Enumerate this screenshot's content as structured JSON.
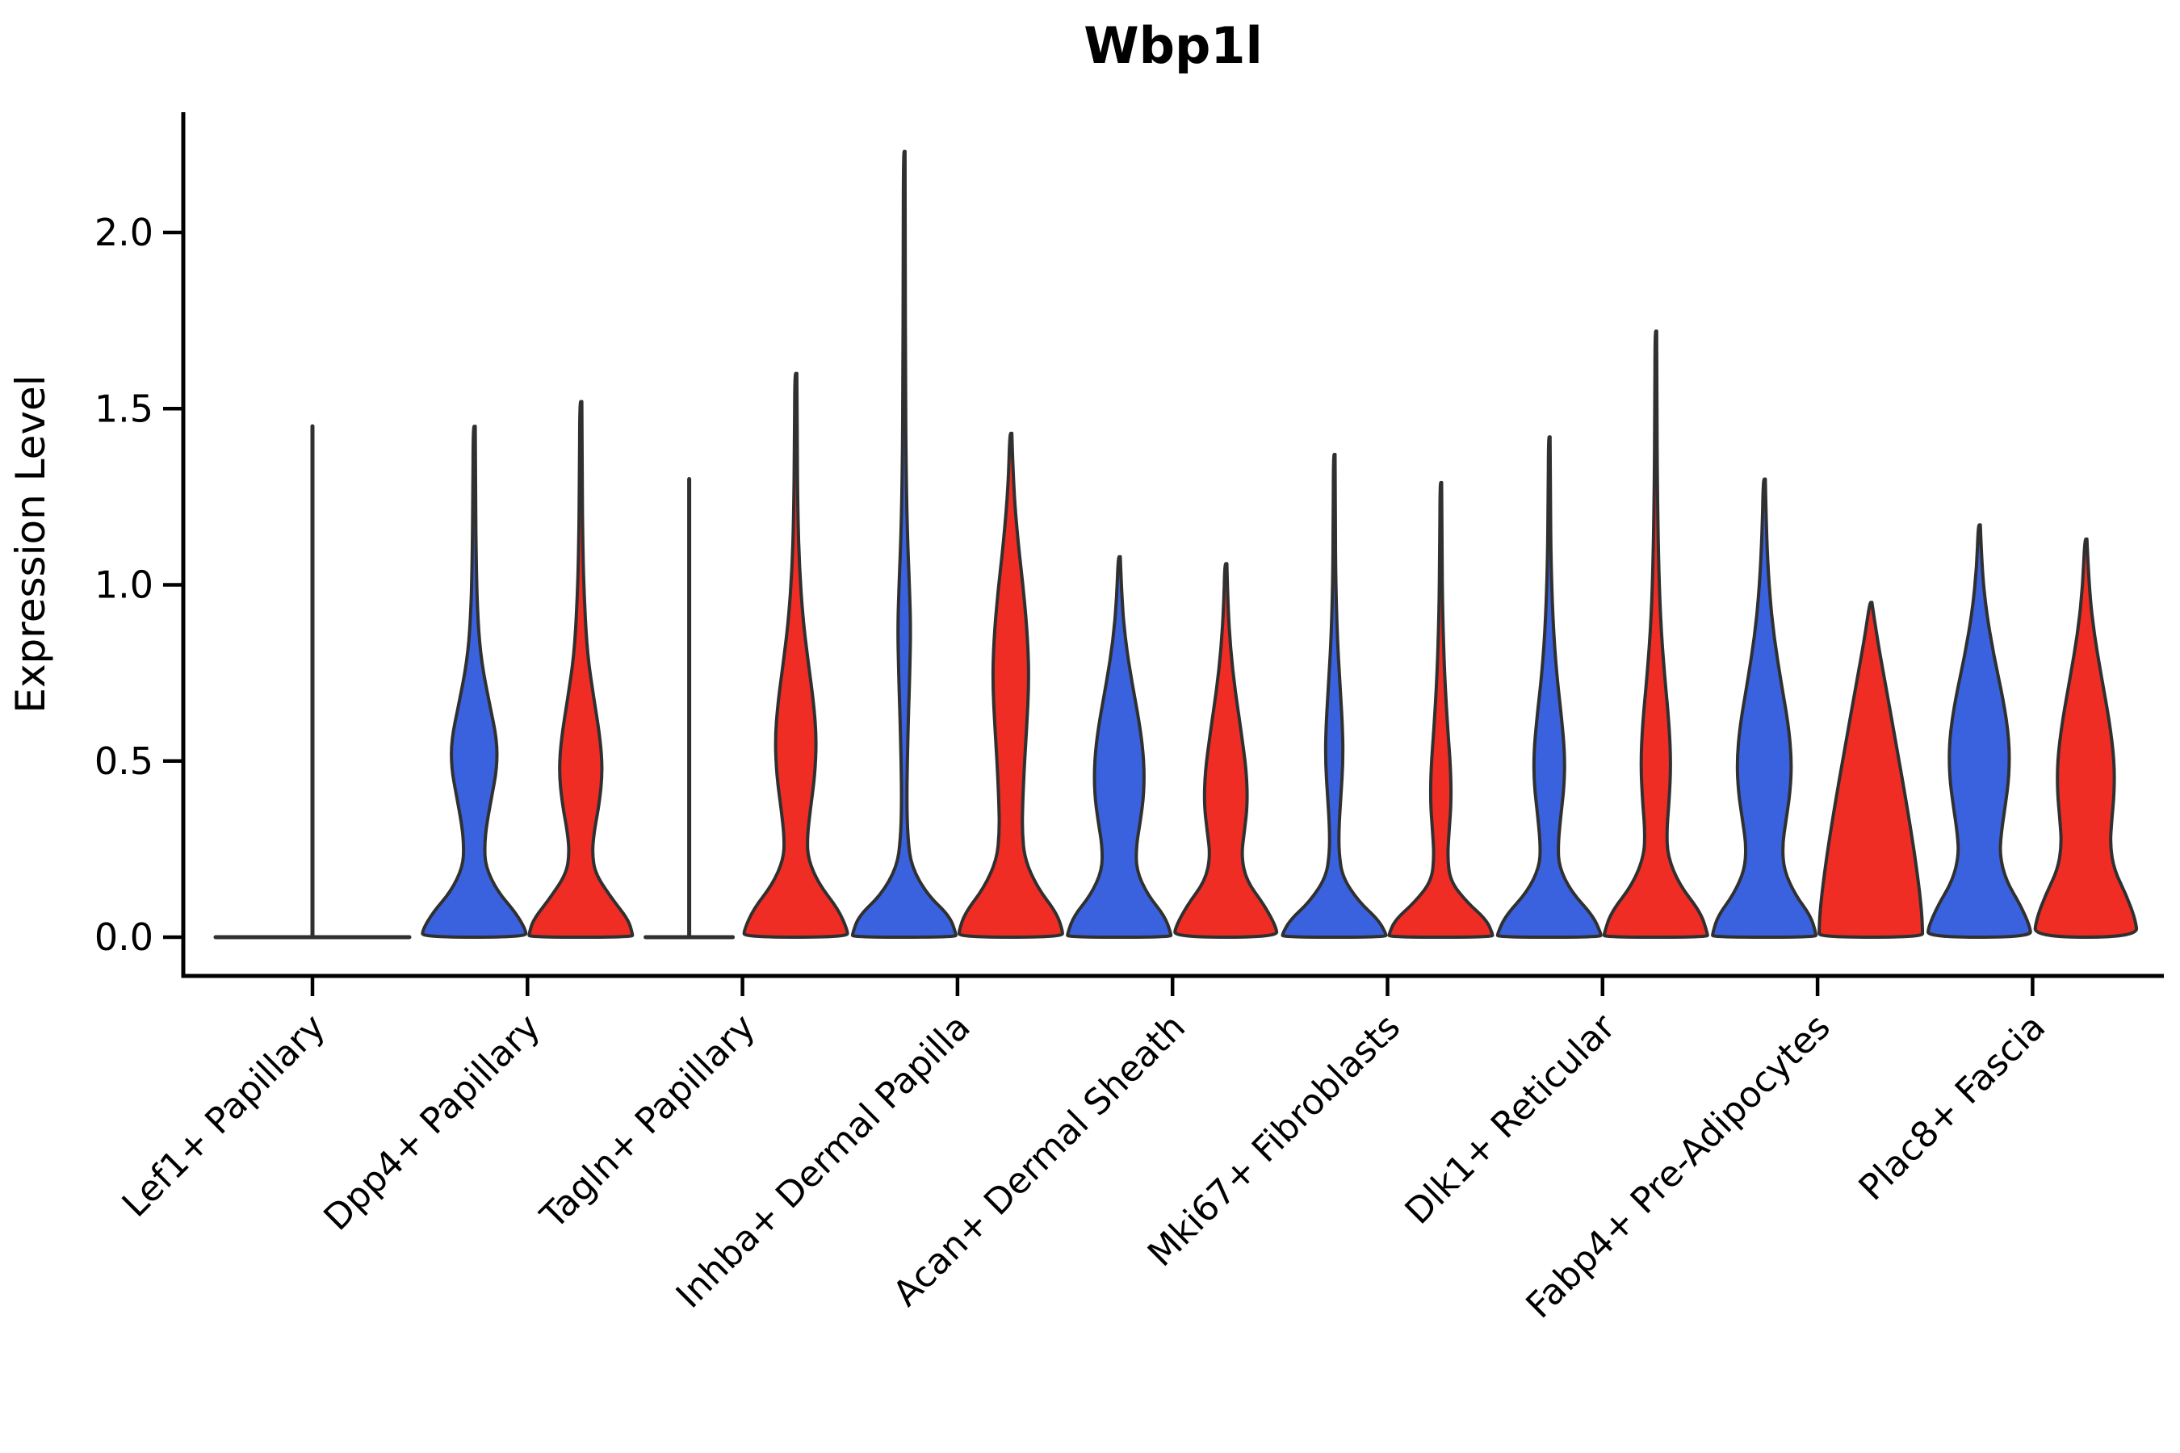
{
  "title": "Wbp1l",
  "ylabel": "Expression Level",
  "colors": {
    "blue": "#3A62DF",
    "red": "#EF2D24",
    "outline": "#303030"
  },
  "chart_data": {
    "type": "violin",
    "title": "Wbp1l",
    "xlabel": "",
    "ylabel": "Expression Level",
    "ylim": [
      -0.11,
      2.34
    ],
    "yticks": [
      0.0,
      0.5,
      1.0,
      1.5,
      2.0
    ],
    "ytick_labels": [
      "0.0",
      "0.5",
      "1.0",
      "1.5",
      "2.0"
    ],
    "grid": false,
    "legend": "none",
    "groups": [
      "blue",
      "red"
    ],
    "categories": [
      "Lef1+ Papillary",
      "Dpp4+ Papillary",
      "Tagln+ Papillary",
      "Inhba+ Dermal Papilla",
      "Acan+ Dermal Sheath",
      "Mki67+ Fibroblasts",
      "Dlk1+ Reticular",
      "Fabp4+ Pre-Adipocytes",
      "Plac8+ Fascia"
    ],
    "violins": [
      {
        "category": "Lef1+ Papillary",
        "blue": {
          "max_expression": 1.45,
          "collapsed_at_zero": true,
          "flat_half_span": 120,
          "center_offset": 0
        },
        "red": {
          "max_expression": 0.0,
          "collapsed_at_zero": true,
          "flat_half_span": 0,
          "center_offset": 66
        }
      },
      {
        "category": "Dpp4+ Papillary",
        "blue": {
          "max_expression": 1.45,
          "profile": [
            [
              1.45,
              0.02
            ],
            [
              1.25,
              0.025
            ],
            [
              1.05,
              0.04
            ],
            [
              0.9,
              0.07
            ],
            [
              0.78,
              0.14
            ],
            [
              0.66,
              0.3
            ],
            [
              0.56,
              0.44
            ],
            [
              0.48,
              0.44
            ],
            [
              0.4,
              0.34
            ],
            [
              0.32,
              0.24
            ],
            [
              0.26,
              0.2
            ],
            [
              0.2,
              0.22
            ],
            [
              0.13,
              0.45
            ],
            [
              0.07,
              0.8
            ],
            [
              0.02,
              1.0
            ],
            [
              0,
              1.0
            ]
          ]
        },
        "red": {
          "max_expression": 1.52,
          "profile": [
            [
              1.52,
              0.02
            ],
            [
              1.3,
              0.025
            ],
            [
              1.1,
              0.04
            ],
            [
              0.95,
              0.07
            ],
            [
              0.8,
              0.13
            ],
            [
              0.68,
              0.25
            ],
            [
              0.56,
              0.38
            ],
            [
              0.47,
              0.42
            ],
            [
              0.38,
              0.36
            ],
            [
              0.3,
              0.26
            ],
            [
              0.24,
              0.22
            ],
            [
              0.18,
              0.28
            ],
            [
              0.11,
              0.6
            ],
            [
              0.05,
              0.92
            ],
            [
              0.01,
              1.0
            ],
            [
              0,
              1.0
            ]
          ]
        }
      },
      {
        "category": "Tagln+ Papillary",
        "blue": {
          "max_expression": 1.3,
          "collapsed_at_zero": true,
          "flat_half_span": 54,
          "center_offset": -66
        },
        "red": {
          "max_expression": 1.6,
          "profile": [
            [
              1.6,
              0.02
            ],
            [
              1.4,
              0.025
            ],
            [
              1.2,
              0.04
            ],
            [
              1.05,
              0.07
            ],
            [
              0.9,
              0.14
            ],
            [
              0.78,
              0.24
            ],
            [
              0.66,
              0.35
            ],
            [
              0.56,
              0.4
            ],
            [
              0.46,
              0.37
            ],
            [
              0.36,
              0.28
            ],
            [
              0.28,
              0.22
            ],
            [
              0.22,
              0.24
            ],
            [
              0.15,
              0.45
            ],
            [
              0.08,
              0.82
            ],
            [
              0.02,
              1.0
            ],
            [
              0,
              1.0
            ]
          ]
        }
      },
      {
        "category": "Inhba+ Dermal Papilla",
        "blue": {
          "max_expression": 2.23,
          "profile": [
            [
              2.23,
              0.015
            ],
            [
              1.9,
              0.02
            ],
            [
              1.6,
              0.025
            ],
            [
              1.35,
              0.035
            ],
            [
              1.15,
              0.06
            ],
            [
              1.0,
              0.1
            ],
            [
              0.88,
              0.125
            ],
            [
              0.76,
              0.11
            ],
            [
              0.62,
              0.08
            ],
            [
              0.5,
              0.06
            ],
            [
              0.38,
              0.05
            ],
            [
              0.28,
              0.07
            ],
            [
              0.2,
              0.14
            ],
            [
              0.12,
              0.45
            ],
            [
              0.06,
              0.88
            ],
            [
              0.01,
              1.0
            ],
            [
              0,
              1.0
            ]
          ]
        },
        "red": {
          "max_expression": 1.43,
          "profile": [
            [
              1.43,
              0.02
            ],
            [
              1.28,
              0.05
            ],
            [
              1.12,
              0.14
            ],
            [
              0.98,
              0.25
            ],
            [
              0.84,
              0.33
            ],
            [
              0.72,
              0.35
            ],
            [
              0.6,
              0.31
            ],
            [
              0.48,
              0.26
            ],
            [
              0.38,
              0.23
            ],
            [
              0.3,
              0.22
            ],
            [
              0.22,
              0.27
            ],
            [
              0.14,
              0.52
            ],
            [
              0.07,
              0.88
            ],
            [
              0.02,
              1.0
            ],
            [
              0,
              1.0
            ]
          ]
        }
      },
      {
        "category": "Acan+ Dermal Sheath",
        "blue": {
          "max_expression": 1.08,
          "profile": [
            [
              1.08,
              0.02
            ],
            [
              0.96,
              0.05
            ],
            [
              0.84,
              0.12
            ],
            [
              0.72,
              0.25
            ],
            [
              0.6,
              0.4
            ],
            [
              0.5,
              0.48
            ],
            [
              0.41,
              0.48
            ],
            [
              0.33,
              0.41
            ],
            [
              0.26,
              0.33
            ],
            [
              0.19,
              0.33
            ],
            [
              0.12,
              0.55
            ],
            [
              0.06,
              0.88
            ],
            [
              0.01,
              1.0
            ],
            [
              0,
              1.0
            ]
          ]
        },
        "red": {
          "max_expression": 1.06,
          "profile": [
            [
              1.06,
              0.02
            ],
            [
              0.94,
              0.04
            ],
            [
              0.82,
              0.09
            ],
            [
              0.7,
              0.18
            ],
            [
              0.58,
              0.3
            ],
            [
              0.47,
              0.4
            ],
            [
              0.38,
              0.42
            ],
            [
              0.3,
              0.36
            ],
            [
              0.23,
              0.3
            ],
            [
              0.16,
              0.4
            ],
            [
              0.09,
              0.75
            ],
            [
              0.03,
              0.97
            ],
            [
              0,
              1.0
            ]
          ]
        }
      },
      {
        "category": "Mki67+ Fibroblasts",
        "blue": {
          "max_expression": 1.37,
          "profile": [
            [
              1.37,
              0.015
            ],
            [
              1.18,
              0.02
            ],
            [
              1.0,
              0.03
            ],
            [
              0.85,
              0.06
            ],
            [
              0.72,
              0.11
            ],
            [
              0.6,
              0.16
            ],
            [
              0.5,
              0.17
            ],
            [
              0.4,
              0.13
            ],
            [
              0.31,
              0.09
            ],
            [
              0.24,
              0.09
            ],
            [
              0.17,
              0.16
            ],
            [
              0.1,
              0.48
            ],
            [
              0.05,
              0.85
            ],
            [
              0.01,
              1.0
            ],
            [
              0,
              1.0
            ]
          ]
        },
        "red": {
          "max_expression": 1.29,
          "profile": [
            [
              1.29,
              0.015
            ],
            [
              1.1,
              0.02
            ],
            [
              0.92,
              0.035
            ],
            [
              0.75,
              0.07
            ],
            [
              0.6,
              0.13
            ],
            [
              0.48,
              0.19
            ],
            [
              0.38,
              0.2
            ],
            [
              0.3,
              0.16
            ],
            [
              0.23,
              0.13
            ],
            [
              0.16,
              0.18
            ],
            [
              0.1,
              0.5
            ],
            [
              0.05,
              0.88
            ],
            [
              0.01,
              1.0
            ],
            [
              0,
              1.0
            ]
          ]
        }
      },
      {
        "category": "Dlk1+ Reticular",
        "blue": {
          "max_expression": 1.42,
          "profile": [
            [
              1.42,
              0.015
            ],
            [
              1.24,
              0.02
            ],
            [
              1.06,
              0.035
            ],
            [
              0.9,
              0.07
            ],
            [
              0.75,
              0.14
            ],
            [
              0.62,
              0.24
            ],
            [
              0.52,
              0.3
            ],
            [
              0.43,
              0.29
            ],
            [
              0.34,
              0.22
            ],
            [
              0.26,
              0.17
            ],
            [
              0.2,
              0.19
            ],
            [
              0.13,
              0.42
            ],
            [
              0.06,
              0.85
            ],
            [
              0.01,
              1.0
            ],
            [
              0,
              1.0
            ]
          ]
        },
        "red": {
          "max_expression": 1.72,
          "profile": [
            [
              1.72,
              0.015
            ],
            [
              1.5,
              0.02
            ],
            [
              1.28,
              0.03
            ],
            [
              1.08,
              0.05
            ],
            [
              0.9,
              0.09
            ],
            [
              0.74,
              0.17
            ],
            [
              0.6,
              0.26
            ],
            [
              0.49,
              0.29
            ],
            [
              0.39,
              0.26
            ],
            [
              0.3,
              0.21
            ],
            [
              0.23,
              0.23
            ],
            [
              0.15,
              0.45
            ],
            [
              0.07,
              0.87
            ],
            [
              0.01,
              1.0
            ],
            [
              0,
              1.0
            ]
          ]
        }
      },
      {
        "category": "Fabp4+ Pre-Adipocytes",
        "blue": {
          "max_expression": 1.3,
          "profile": [
            [
              1.3,
              0.02
            ],
            [
              1.15,
              0.04
            ],
            [
              1.0,
              0.09
            ],
            [
              0.86,
              0.18
            ],
            [
              0.72,
              0.33
            ],
            [
              0.6,
              0.47
            ],
            [
              0.5,
              0.53
            ],
            [
              0.41,
              0.5
            ],
            [
              0.33,
              0.42
            ],
            [
              0.26,
              0.35
            ],
            [
              0.19,
              0.38
            ],
            [
              0.12,
              0.6
            ],
            [
              0.06,
              0.9
            ],
            [
              0.01,
              1.0
            ],
            [
              0,
              1.0
            ]
          ]
        },
        "red": {
          "max_expression": 0.95,
          "profile": [
            [
              0.95,
              0.02
            ],
            [
              0.85,
              0.12
            ],
            [
              0.72,
              0.28
            ],
            [
              0.58,
              0.45
            ],
            [
              0.44,
              0.62
            ],
            [
              0.3,
              0.78
            ],
            [
              0.18,
              0.9
            ],
            [
              0.08,
              0.98
            ],
            [
              0.02,
              1.0
            ],
            [
              0,
              1.0
            ]
          ]
        }
      },
      {
        "category": "Plac8+ Fascia",
        "blue": {
          "max_expression": 1.17,
          "profile": [
            [
              1.17,
              0.02
            ],
            [
              1.05,
              0.05
            ],
            [
              0.93,
              0.13
            ],
            [
              0.8,
              0.28
            ],
            [
              0.67,
              0.47
            ],
            [
              0.56,
              0.58
            ],
            [
              0.46,
              0.58
            ],
            [
              0.37,
              0.5
            ],
            [
              0.29,
              0.42
            ],
            [
              0.23,
              0.4
            ],
            [
              0.16,
              0.52
            ],
            [
              0.09,
              0.8
            ],
            [
              0.03,
              0.98
            ],
            [
              0,
              1.0
            ]
          ]
        },
        "red": {
          "max_expression": 1.13,
          "profile": [
            [
              1.13,
              0.02
            ],
            [
              1.0,
              0.06
            ],
            [
              0.87,
              0.15
            ],
            [
              0.74,
              0.3
            ],
            [
              0.61,
              0.46
            ],
            [
              0.5,
              0.55
            ],
            [
              0.41,
              0.55
            ],
            [
              0.33,
              0.5
            ],
            [
              0.26,
              0.47
            ],
            [
              0.19,
              0.55
            ],
            [
              0.12,
              0.78
            ],
            [
              0.05,
              0.96
            ],
            [
              0,
              1.0
            ]
          ]
        }
      }
    ]
  }
}
